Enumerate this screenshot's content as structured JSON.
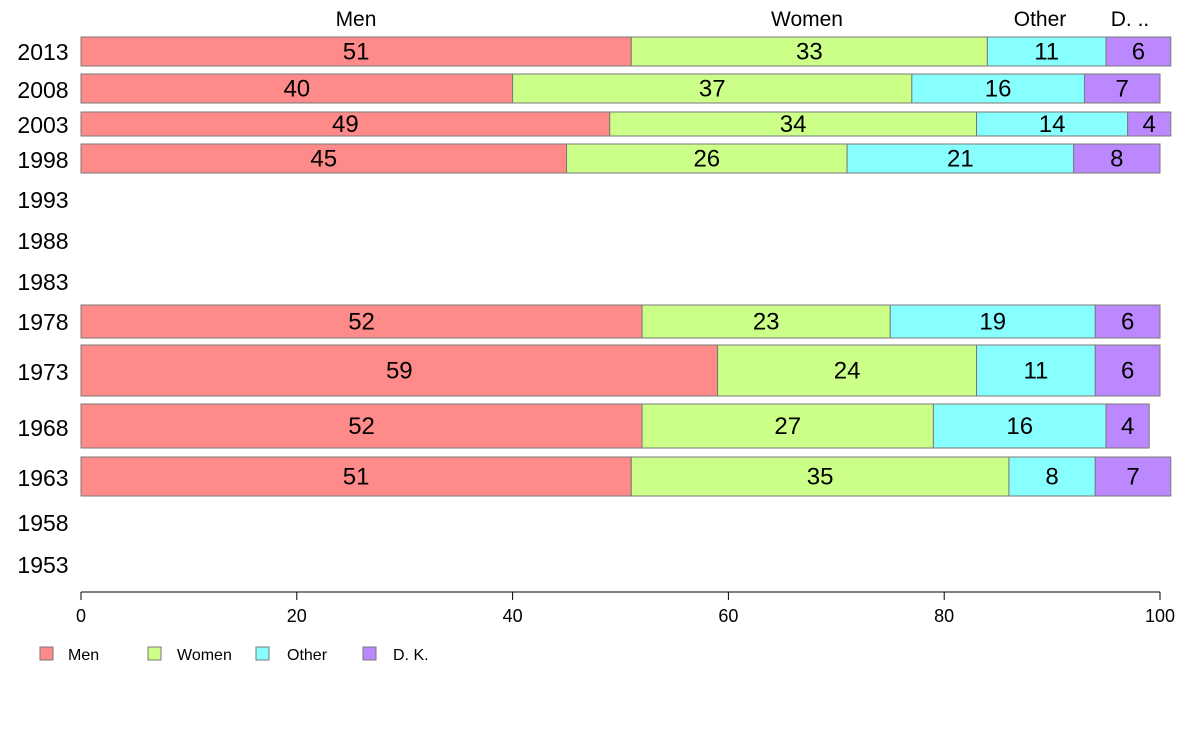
{
  "chart_data": {
    "type": "bar",
    "orientation": "horizontal",
    "stacked": true,
    "title": "",
    "xlabel": "",
    "ylabel": "",
    "xlim": [
      0,
      100
    ],
    "x_ticks": [
      0,
      20,
      40,
      60,
      80,
      100
    ],
    "categories": [
      "2013",
      "2008",
      "2003",
      "1998",
      "1993",
      "1988",
      "1983",
      "1978",
      "1973",
      "1968",
      "1963",
      "1958",
      "1953"
    ],
    "top_labels": [
      "Men",
      "Women",
      "Other",
      "D. .."
    ],
    "series": [
      {
        "name": "Men",
        "color": "#ff8a8a",
        "values": [
          51,
          40,
          49,
          45,
          null,
          null,
          null,
          52,
          59,
          52,
          51,
          null,
          null
        ]
      },
      {
        "name": "Women",
        "color": "#ccff88",
        "values": [
          33,
          37,
          34,
          26,
          null,
          null,
          null,
          23,
          24,
          27,
          35,
          null,
          null
        ]
      },
      {
        "name": "Other",
        "color": "#88ffff",
        "values": [
          11,
          16,
          14,
          21,
          null,
          null,
          null,
          19,
          11,
          16,
          8,
          null,
          null
        ]
      },
      {
        "name": "D. K.",
        "color": "#bb88ff",
        "values": [
          6,
          7,
          4,
          8,
          null,
          null,
          null,
          6,
          6,
          4,
          7,
          null,
          null
        ]
      }
    ],
    "legend": {
      "position": "bottom-left",
      "entries": [
        "Men",
        "Women",
        "Other",
        "D. K."
      ]
    },
    "grid": false
  }
}
